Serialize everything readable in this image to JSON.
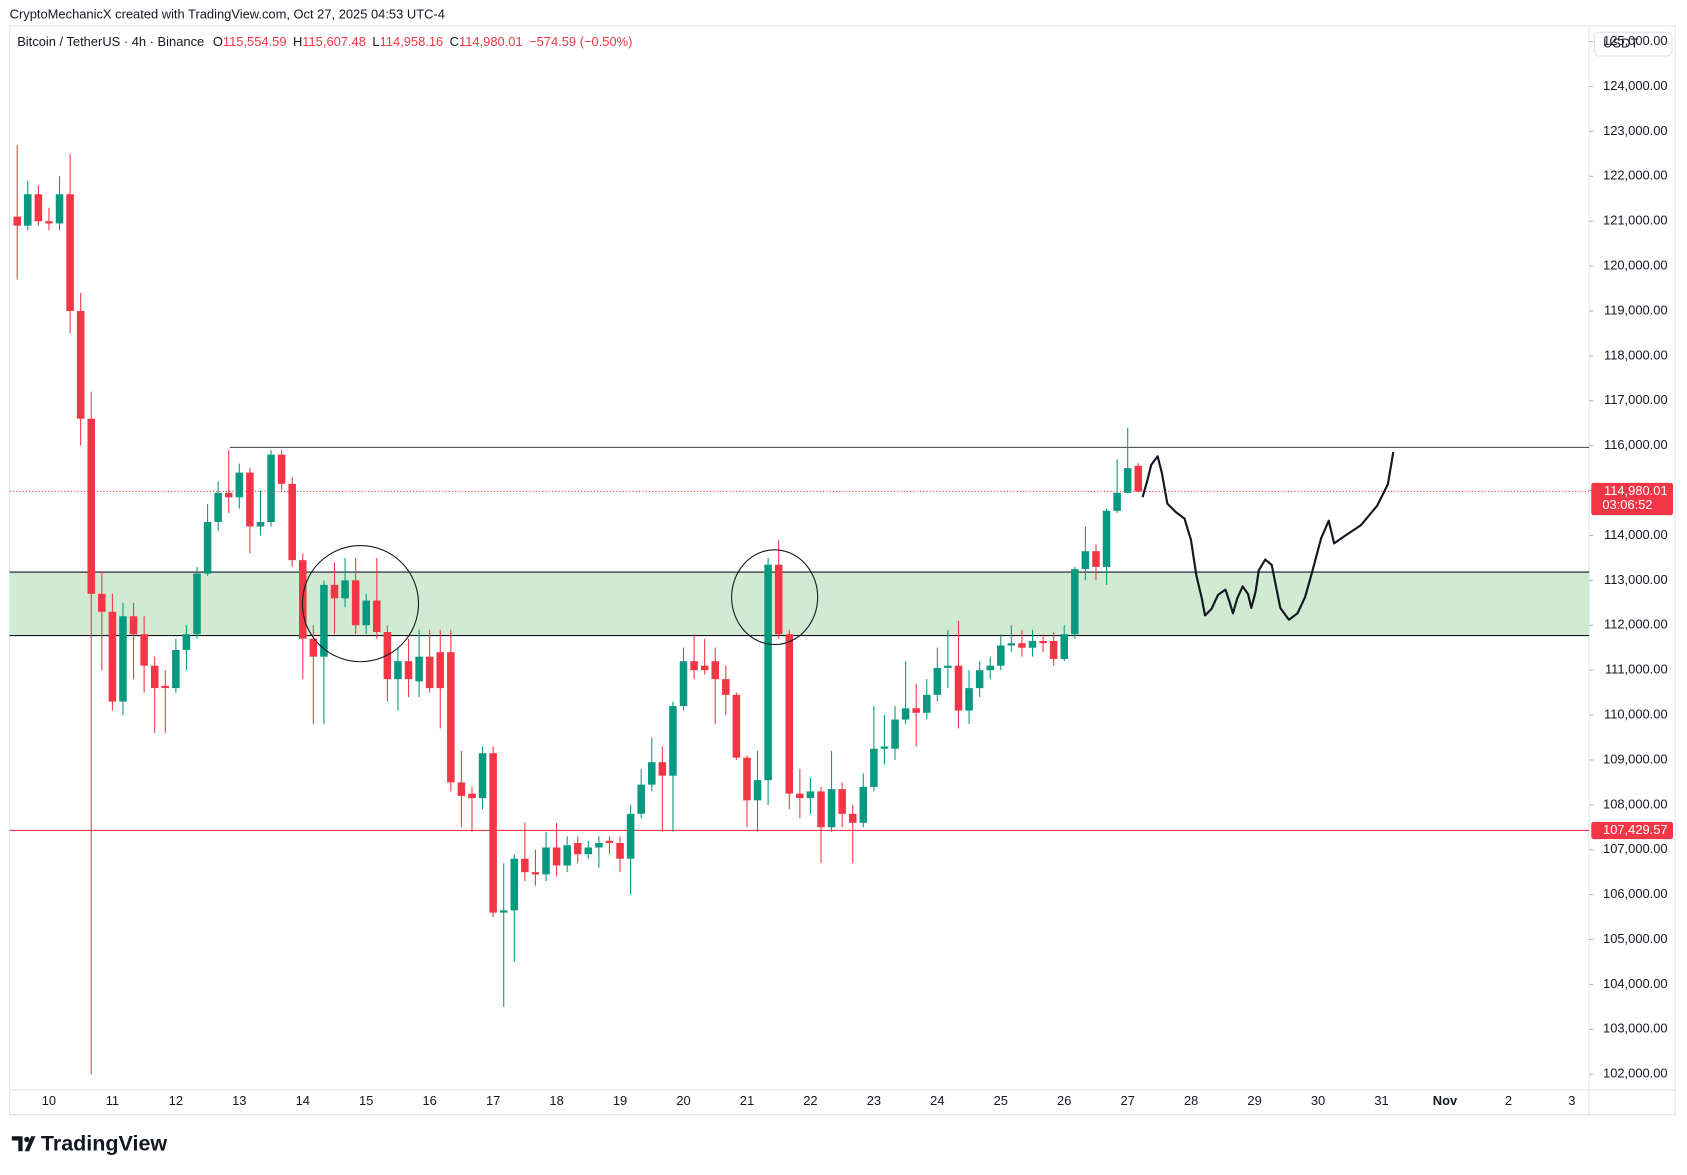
{
  "chart_data": {
    "type": "candlestick",
    "header": "CryptoMechanicX created with TradingView.com, Oct 27, 2025 04:53 UTC-4",
    "symbol": "Bitcoin / TetherUS · 4h · Binance",
    "legend": [
      {
        "key": "O",
        "value": "115,554.59"
      },
      {
        "key": "H",
        "value": "115,607.48"
      },
      {
        "key": "L",
        "value": "114,958.16"
      },
      {
        "key": "C",
        "value": "114,980.01"
      }
    ],
    "change": "−574.59 (−0.50%)",
    "currency": "USDT",
    "up_color": "#089981",
    "down_color": "#f23645",
    "candles": {
      "open": [
        121100,
        120900,
        121600,
        121000,
        120950,
        121600,
        119000,
        116600,
        112700,
        112300,
        110300,
        112200,
        111800,
        111100,
        110650,
        110600,
        111450,
        111800,
        113150,
        114300,
        114950,
        114850,
        115400,
        114200,
        114300,
        115800,
        115150,
        113450,
        111700,
        111300,
        112900,
        112600,
        113000,
        112000,
        112550,
        111850,
        110800,
        111200,
        110750,
        111300,
        111400,
        111400,
        108500,
        108250,
        108150,
        109150,
        105600,
        105650,
        106800,
        106500,
        106450,
        107050,
        106650,
        107150,
        106900,
        107050,
        107200,
        107150,
        106800,
        107800,
        108450,
        108950,
        108650,
        110200,
        111200,
        111100,
        111200,
        110800,
        110450,
        109050,
        108100,
        108550,
        113350,
        111800,
        108250,
        108150,
        108300,
        107500,
        108350,
        107800,
        107600,
        108400,
        109250,
        109250,
        109900,
        110150,
        110050,
        110450,
        111050,
        111100,
        110100,
        110600,
        111000,
        111100,
        111550,
        111600,
        111500,
        111650,
        111650,
        111250,
        111800,
        113250,
        113650,
        113300,
        114550,
        114950,
        115550
      ],
      "high": [
        122700,
        121900,
        121800,
        121300,
        122000,
        122500,
        119400,
        117200,
        113200,
        112700,
        112500,
        112500,
        112200,
        111300,
        111000,
        111700,
        112000,
        113300,
        114700,
        115200,
        115900,
        115600,
        115500,
        115000,
        115900,
        115900,
        115300,
        113600,
        112000,
        113000,
        113400,
        113500,
        113500,
        112700,
        113500,
        112000,
        111500,
        111700,
        111900,
        111900,
        111900,
        111900,
        109200,
        108400,
        109300,
        109300,
        106700,
        106900,
        107600,
        107000,
        107400,
        107600,
        107300,
        107300,
        107200,
        107300,
        107300,
        107300,
        108000,
        108800,
        109500,
        109300,
        110300,
        111500,
        111800,
        111700,
        111500,
        111100,
        110500,
        109100,
        109200,
        113500,
        113900,
        111900,
        108800,
        108600,
        108400,
        109200,
        108500,
        108000,
        108700,
        110200,
        110000,
        110200,
        111200,
        110700,
        110800,
        111500,
        111900,
        112100,
        111000,
        111200,
        111300,
        111800,
        112000,
        111900,
        111900,
        111800,
        111850,
        112000,
        113300,
        114200,
        113800,
        114600,
        115700,
        116400,
        115610
      ],
      "low": [
        119700,
        120800,
        120900,
        120800,
        120800,
        118500,
        116000,
        102000,
        111000,
        110100,
        110000,
        110800,
        110500,
        109600,
        109600,
        110500,
        111000,
        111700,
        113100,
        114100,
        114500,
        114600,
        113600,
        114000,
        114200,
        115000,
        113300,
        110800,
        109800,
        109800,
        111800,
        112400,
        111800,
        111800,
        111700,
        110300,
        110100,
        110400,
        110400,
        110500,
        109700,
        108300,
        107500,
        107400,
        107900,
        105500,
        103500,
        104500,
        106300,
        106200,
        106300,
        106400,
        106500,
        106700,
        106800,
        106600,
        106900,
        106500,
        106000,
        107700,
        108300,
        107400,
        107400,
        110100,
        110800,
        110900,
        109800,
        110000,
        109000,
        107500,
        107400,
        108000,
        111700,
        107900,
        107700,
        107800,
        106700,
        107400,
        107500,
        106700,
        107500,
        108300,
        108900,
        109000,
        109800,
        109300,
        109900,
        110300,
        110600,
        109700,
        109800,
        110400,
        110800,
        111000,
        111400,
        111300,
        111300,
        111400,
        111100,
        111200,
        111700,
        113000,
        113000,
        112900,
        114500,
        114950,
        114960
      ],
      "close": [
        120900,
        121600,
        121000,
        120950,
        121600,
        119000,
        116600,
        112700,
        112300,
        110300,
        112200,
        111800,
        111100,
        110600,
        110600,
        111450,
        111800,
        113150,
        114300,
        114950,
        114850,
        115400,
        114200,
        114300,
        115800,
        115150,
        113450,
        111700,
        111300,
        112900,
        112600,
        113000,
        112000,
        112550,
        111850,
        110800,
        111200,
        110800,
        111300,
        110600,
        110600,
        108500,
        108200,
        108150,
        109150,
        105600,
        105650,
        106800,
        106500,
        106450,
        107050,
        106650,
        107100,
        106900,
        107050,
        107150,
        107150,
        106800,
        107800,
        108450,
        108950,
        108650,
        110200,
        111200,
        111000,
        111000,
        110800,
        110450,
        109050,
        108100,
        108550,
        113350,
        111800,
        108250,
        108150,
        108300,
        107500,
        108350,
        107800,
        107600,
        108400,
        109250,
        109300,
        109900,
        110150,
        110050,
        110450,
        111050,
        111100,
        110100,
        110600,
        111000,
        111100,
        111550,
        111600,
        111500,
        111650,
        111600,
        111250,
        111800,
        113250,
        113650,
        113300,
        114550,
        114950,
        115500,
        114980
      ]
    },
    "xticks": [
      "10",
      "11",
      "12",
      "13",
      "14",
      "15",
      "16",
      "17",
      "18",
      "19",
      "20",
      "21",
      "22",
      "23",
      "24",
      "25",
      "26",
      "27",
      "28",
      "29",
      "30",
      "31",
      "Nov",
      "2",
      "3"
    ],
    "ylim": [
      101650,
      125350
    ],
    "yticks": [
      {
        "value": 102000,
        "label": "102,000.00"
      },
      {
        "value": 103000,
        "label": "103,000.00"
      },
      {
        "value": 104000,
        "label": "104,000.00"
      },
      {
        "value": 105000,
        "label": "105,000.00"
      },
      {
        "value": 106000,
        "label": "106,000.00"
      },
      {
        "value": 107000,
        "label": "107,000.00"
      },
      {
        "value": 108000,
        "label": "108,000.00"
      },
      {
        "value": 109000,
        "label": "109,000.00"
      },
      {
        "value": 110000,
        "label": "110,000.00"
      },
      {
        "value": 111000,
        "label": "111,000.00"
      },
      {
        "value": 112000,
        "label": "112,000.00"
      },
      {
        "value": 113000,
        "label": "113,000.00"
      },
      {
        "value": 114000,
        "label": "114,000.00"
      },
      {
        "value": 115000,
        "label": "115,000.00"
      },
      {
        "value": 116000,
        "label": "116,000.00"
      },
      {
        "value": 117000,
        "label": "117,000.00"
      },
      {
        "value": 118000,
        "label": "118,000.00"
      },
      {
        "value": 119000,
        "label": "119,000.00"
      },
      {
        "value": 120000,
        "label": "120,000.00"
      },
      {
        "value": 121000,
        "label": "121,000.00"
      },
      {
        "value": 122000,
        "label": "122,000.00"
      },
      {
        "value": 123000,
        "label": "123,000.00"
      },
      {
        "value": 124000,
        "label": "124,000.00"
      },
      {
        "value": 125000,
        "label": "125,000.00"
      }
    ],
    "last_price": {
      "value": 114980.01,
      "label": "114,980.01",
      "countdown": "03:06:52"
    },
    "level_line": {
      "value": 107429.57,
      "label": "107,429.57"
    },
    "resistance": 115960,
    "zone": [
      111770,
      113185
    ],
    "brand": "TradingView"
  }
}
